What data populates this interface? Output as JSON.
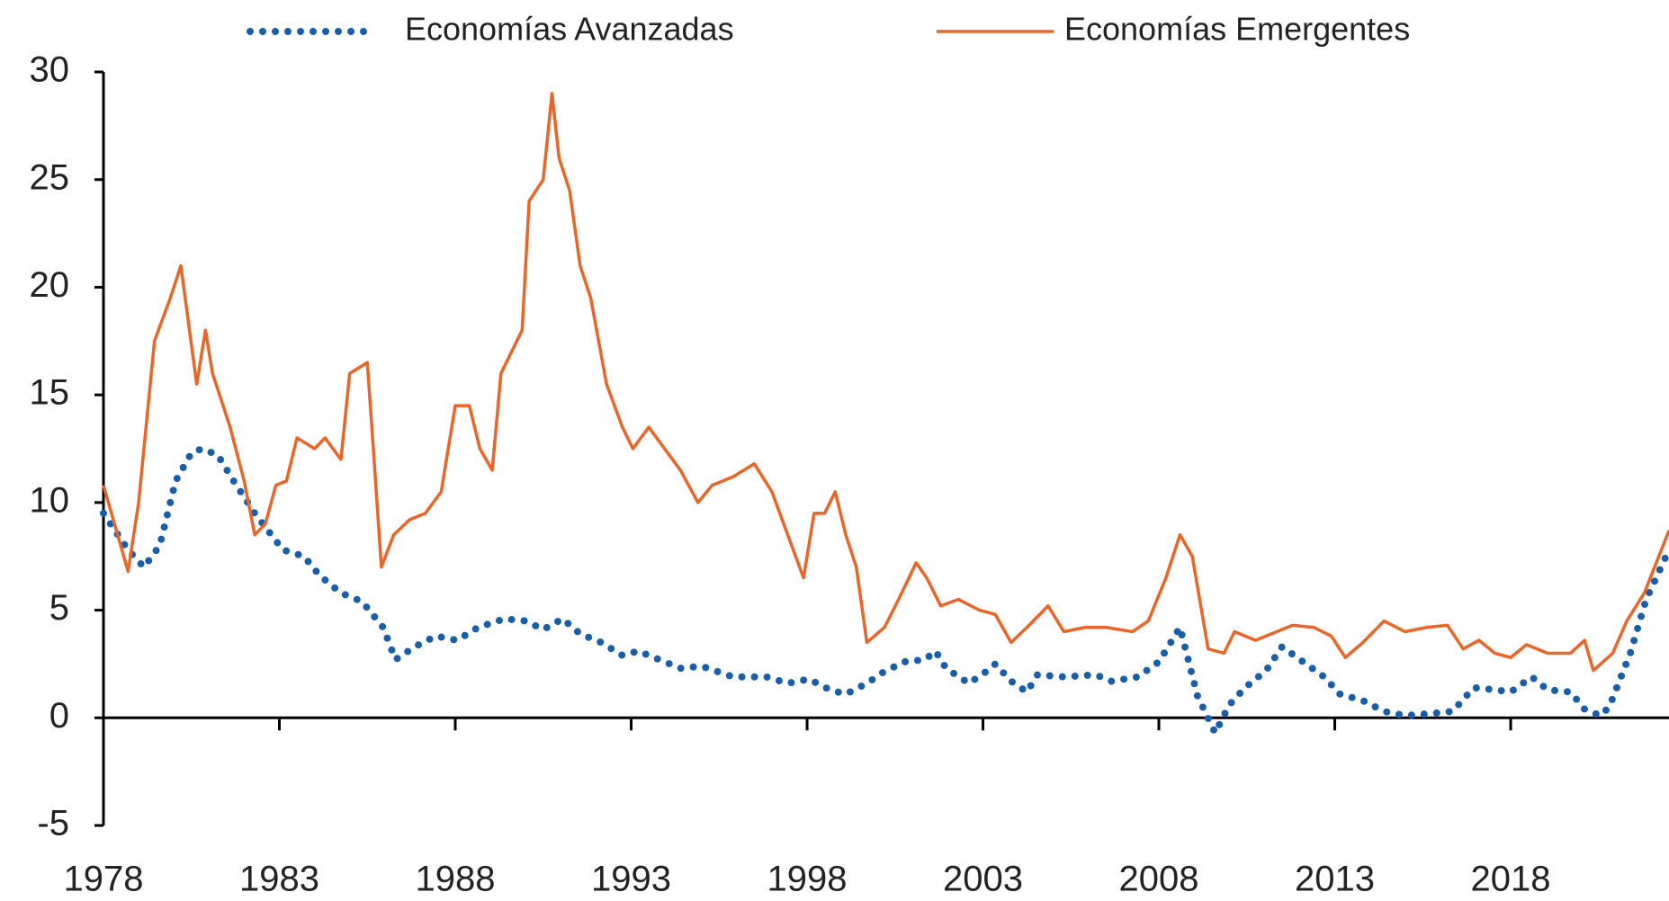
{
  "chart_data": {
    "type": "line",
    "legend": "top",
    "xlim": [
      1978,
      2022.5
    ],
    "xticks": [
      1978,
      1983,
      1988,
      1993,
      1998,
      2003,
      2008,
      2013,
      2018
    ],
    "ylim": [
      -5,
      30
    ],
    "yticks": [
      -5,
      0,
      5,
      10,
      15,
      20,
      25,
      30
    ],
    "series": [
      {
        "name": "Economías Avanzadas",
        "color": "#1a5da8",
        "style": "dotted",
        "x": [
          1978.0,
          1978.7,
          1979.15,
          1979.6,
          1980.05,
          1980.5,
          1980.8,
          1981.25,
          1981.7,
          1982.3,
          1983.1,
          1983.7,
          1984.15,
          1984.75,
          1985.35,
          1985.95,
          1986.3,
          1986.85,
          1987.45,
          1988.05,
          1988.65,
          1989.4,
          1990.0,
          1990.5,
          1991.05,
          1991.55,
          1992.15,
          1992.75,
          1993.2,
          1993.8,
          1994.4,
          1995.0,
          1995.9,
          1996.85,
          1997.45,
          1998.05,
          1998.65,
          1999.1,
          1999.7,
          2000.15,
          2000.75,
          2001.35,
          2001.65,
          2001.95,
          2002.6,
          2003.05,
          2003.35,
          2003.8,
          2004.25,
          2004.55,
          2005.3,
          2006.2,
          2006.65,
          2007.4,
          2008.0,
          2008.6,
          2009.1,
          2009.6,
          2010.0,
          2010.45,
          2011.05,
          2011.5,
          2012.1,
          2012.7,
          2013.15,
          2013.8,
          2014.4,
          2015.0,
          2015.75,
          2016.35,
          2016.95,
          2017.55,
          2018.0,
          2018.6,
          2019.05,
          2019.7,
          2020.1,
          2020.55,
          2020.8,
          2021.4,
          2021.85,
          2022.5
        ],
        "values": [
          9.5,
          7.8,
          7,
          8,
          11,
          12.3,
          12.5,
          12.2,
          11,
          9.5,
          7.8,
          7.5,
          6.6,
          5.8,
          5.4,
          4.2,
          2.7,
          3.3,
          3.8,
          3.6,
          4.2,
          4.6,
          4.5,
          4.1,
          4.6,
          3.9,
          3.5,
          2.9,
          3.1,
          2.7,
          2.3,
          2.4,
          1.9,
          1.9,
          1.6,
          1.8,
          1.3,
          1.1,
          1.6,
          2.1,
          2.6,
          2.7,
          3.1,
          2.3,
          1.6,
          2.1,
          2.5,
          1.7,
          1.2,
          2.0,
          1.9,
          2.0,
          1.7,
          1.9,
          2.6,
          4.2,
          1.0,
          -0.7,
          0.6,
          1.4,
          2.2,
          3.3,
          2.6,
          1.9,
          1.1,
          0.8,
          0.3,
          0.1,
          0.2,
          0.3,
          1.4,
          1.3,
          1.2,
          1.9,
          1.3,
          1.2,
          0.4,
          0.1,
          0.5,
          3,
          5.5,
          7.8
        ]
      },
      {
        "name": "Economías Emergentes",
        "color": "#e8662a",
        "style": "solid",
        "x": [
          1978.0,
          1978.7,
          1979.0,
          1979.45,
          1979.9,
          1980.2,
          1980.65,
          1980.9,
          1981.1,
          1981.6,
          1982.0,
          1982.3,
          1982.6,
          1982.9,
          1983.2,
          1983.5,
          1984.0,
          1984.3,
          1984.75,
          1985.0,
          1985.5,
          1985.65,
          1985.9,
          1986.25,
          1986.7,
          1987.15,
          1987.6,
          1988.0,
          1988.4,
          1988.7,
          1989.05,
          1989.3,
          1989.6,
          1989.9,
          1990.1,
          1990.5,
          1990.75,
          1990.95,
          1991.25,
          1991.55,
          1991.85,
          1992.3,
          1992.75,
          1993.05,
          1993.5,
          1993.95,
          1994.4,
          1994.9,
          1995.3,
          1995.9,
          1996.5,
          1997.0,
          1997.45,
          1997.9,
          1998.2,
          1998.5,
          1998.8,
          1999.1,
          1999.4,
          1999.7,
          2000.2,
          2000.6,
          2001.1,
          2001.4,
          2001.8,
          2002.3,
          2002.9,
          2003.35,
          2003.8,
          2004.25,
          2004.85,
          2005.3,
          2005.9,
          2006.5,
          2007.25,
          2007.7,
          2008.2,
          2008.6,
          2008.95,
          2009.4,
          2009.85,
          2010.15,
          2010.75,
          2011.35,
          2011.8,
          2012.4,
          2012.9,
          2013.3,
          2013.8,
          2014.4,
          2015.0,
          2015.6,
          2016.2,
          2016.65,
          2017.1,
          2017.55,
          2018.0,
          2018.45,
          2019.05,
          2019.7,
          2020.1,
          2020.35,
          2020.9,
          2021.3,
          2021.8,
          2022.5
        ],
        "values": [
          10.8,
          6.8,
          10,
          17.5,
          19.5,
          21,
          15.5,
          18,
          16,
          13.5,
          11,
          8.5,
          9,
          10.8,
          11,
          13,
          12.5,
          13,
          12,
          16,
          16.5,
          13,
          7,
          8.5,
          9.2,
          9.5,
          10.5,
          14.5,
          14.5,
          12.5,
          11.5,
          16,
          17,
          18,
          24,
          25,
          29,
          26,
          24.5,
          21,
          19.5,
          15.5,
          13.5,
          12.5,
          13.5,
          12.5,
          11.5,
          10,
          10.8,
          11.2,
          11.8,
          10.5,
          8.5,
          6.5,
          9.5,
          9.5,
          10.5,
          8.5,
          7,
          3.5,
          4.2,
          5.5,
          7.2,
          6.5,
          5.2,
          5.5,
          5,
          4.8,
          3.5,
          4.2,
          5.2,
          4.0,
          4.2,
          4.2,
          4,
          4.5,
          6.5,
          8.5,
          7.5,
          3.2,
          3,
          4,
          3.6,
          4,
          4.3,
          4.2,
          3.8,
          2.8,
          3.5,
          4.5,
          4.0,
          4.2,
          4.3,
          3.2,
          3.6,
          3.0,
          2.8,
          3.4,
          3.0,
          3.0,
          3.6,
          2.2,
          3.0,
          4.5,
          5.8,
          8.7
        ]
      }
    ]
  }
}
